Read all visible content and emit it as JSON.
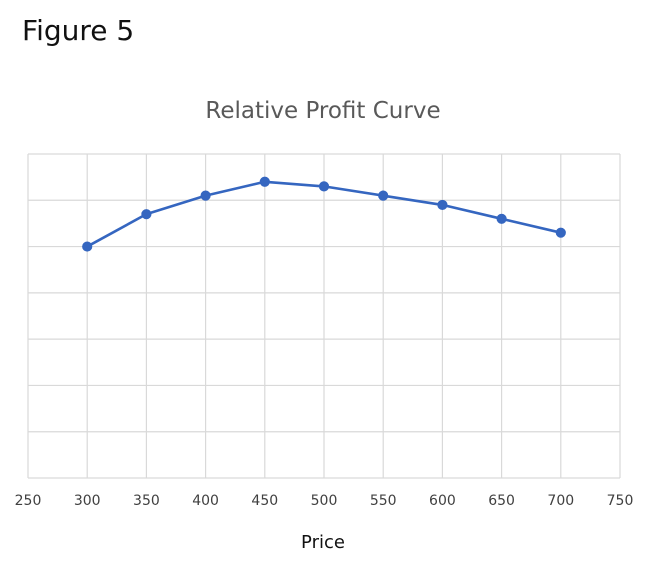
{
  "figure_label": "Figure 5",
  "colors": {
    "series": "#3566C0",
    "grid": "#d9d9d9",
    "text": "#404040",
    "title": "#595959"
  },
  "chart_data": {
    "type": "line",
    "title": "Relative Profit Curve",
    "xlabel": "Price",
    "ylabel": "",
    "xlim": [
      250,
      750
    ],
    "x_ticks": [
      250,
      300,
      350,
      400,
      450,
      500,
      550,
      600,
      650,
      700,
      750
    ],
    "ylim": [
      0,
      7
    ],
    "y_ticks_labeled": false,
    "grid": true,
    "legend": "none",
    "series": [
      {
        "x": [
          300,
          350,
          400,
          450,
          500,
          550,
          600,
          650,
          700
        ],
        "y": [
          5.0,
          5.7,
          6.1,
          6.4,
          6.3,
          6.1,
          5.9,
          5.6,
          5.3
        ]
      }
    ]
  }
}
